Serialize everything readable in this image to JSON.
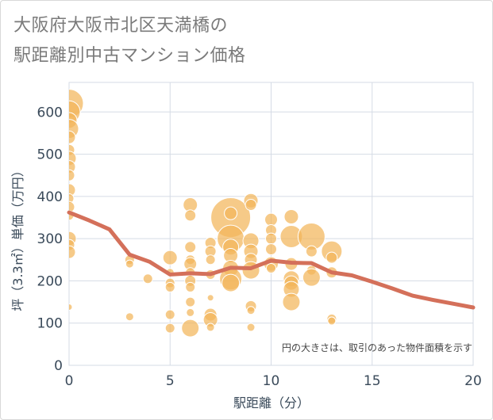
{
  "title_line1": "大阪府大阪市北区天満橋の",
  "title_line2": "駅距離別中古マンション価格",
  "colors": {
    "bubble": "#f2b65a",
    "line": "#d4705a",
    "grid": "#d5dbe5",
    "axis_text": "#3a4a5a"
  },
  "chart_data": {
    "type": "scatter",
    "xlabel": "駅距離（分）",
    "ylabel": "坪（3.3㎡）単価（万円）",
    "xlim": [
      0,
      20
    ],
    "ylim": [
      0,
      670
    ],
    "x_ticks": [
      "0",
      "5",
      "10",
      "15",
      "20"
    ],
    "y_ticks": [
      "0",
      "100",
      "200",
      "300",
      "400",
      "500",
      "600"
    ],
    "note": "円の大きさは、取引のあった物件面積を示す",
    "bubbles": [
      {
        "x": 0,
        "y": 620,
        "r": 18
      },
      {
        "x": 0,
        "y": 600,
        "r": 14
      },
      {
        "x": 0,
        "y": 580,
        "r": 10
      },
      {
        "x": 0,
        "y": 560,
        "r": 12
      },
      {
        "x": 0,
        "y": 540,
        "r": 8
      },
      {
        "x": 0,
        "y": 510,
        "r": 7
      },
      {
        "x": 0,
        "y": 490,
        "r": 9
      },
      {
        "x": 0,
        "y": 470,
        "r": 8
      },
      {
        "x": 0,
        "y": 450,
        "r": 7
      },
      {
        "x": 0,
        "y": 415,
        "r": 8
      },
      {
        "x": 0,
        "y": 395,
        "r": 6
      },
      {
        "x": 0,
        "y": 375,
        "r": 7
      },
      {
        "x": 0,
        "y": 355,
        "r": 6
      },
      {
        "x": 0,
        "y": 300,
        "r": 9
      },
      {
        "x": 0,
        "y": 285,
        "r": 7
      },
      {
        "x": 0,
        "y": 268,
        "r": 8
      },
      {
        "x": 0,
        "y": 138,
        "r": 4
      },
      {
        "x": 3,
        "y": 250,
        "r": 6
      },
      {
        "x": 3,
        "y": 240,
        "r": 5
      },
      {
        "x": 3,
        "y": 115,
        "r": 5
      },
      {
        "x": 3.9,
        "y": 205,
        "r": 6
      },
      {
        "x": 5,
        "y": 255,
        "r": 9
      },
      {
        "x": 5,
        "y": 220,
        "r": 5
      },
      {
        "x": 5,
        "y": 195,
        "r": 6
      },
      {
        "x": 5,
        "y": 185,
        "r": 6
      },
      {
        "x": 5,
        "y": 120,
        "r": 6
      },
      {
        "x": 5,
        "y": 88,
        "r": 6
      },
      {
        "x": 6,
        "y": 380,
        "r": 9
      },
      {
        "x": 6,
        "y": 355,
        "r": 7
      },
      {
        "x": 6,
        "y": 280,
        "r": 7
      },
      {
        "x": 6,
        "y": 250,
        "r": 6
      },
      {
        "x": 6,
        "y": 240,
        "r": 8
      },
      {
        "x": 6,
        "y": 220,
        "r": 6
      },
      {
        "x": 6,
        "y": 200,
        "r": 7
      },
      {
        "x": 6,
        "y": 185,
        "r": 6
      },
      {
        "x": 6,
        "y": 150,
        "r": 6
      },
      {
        "x": 6,
        "y": 125,
        "r": 5
      },
      {
        "x": 6,
        "y": 88,
        "r": 11
      },
      {
        "x": 7,
        "y": 290,
        "r": 7
      },
      {
        "x": 7,
        "y": 270,
        "r": 7
      },
      {
        "x": 7,
        "y": 250,
        "r": 6
      },
      {
        "x": 7,
        "y": 215,
        "r": 6
      },
      {
        "x": 7,
        "y": 160,
        "r": 4
      },
      {
        "x": 7,
        "y": 120,
        "r": 8
      },
      {
        "x": 7,
        "y": 108,
        "r": 9
      },
      {
        "x": 7,
        "y": 90,
        "r": 5
      },
      {
        "x": 8,
        "y": 350,
        "r": 25
      },
      {
        "x": 8,
        "y": 300,
        "r": 17
      },
      {
        "x": 8,
        "y": 360,
        "r": 8
      },
      {
        "x": 8,
        "y": 280,
        "r": 10
      },
      {
        "x": 8,
        "y": 260,
        "r": 9
      },
      {
        "x": 8,
        "y": 230,
        "r": 10
      },
      {
        "x": 8,
        "y": 205,
        "r": 14
      },
      {
        "x": 8,
        "y": 195,
        "r": 11
      },
      {
        "x": 9,
        "y": 390,
        "r": 9
      },
      {
        "x": 9,
        "y": 380,
        "r": 7
      },
      {
        "x": 9,
        "y": 295,
        "r": 10
      },
      {
        "x": 9,
        "y": 270,
        "r": 9
      },
      {
        "x": 9,
        "y": 250,
        "r": 8
      },
      {
        "x": 9,
        "y": 225,
        "r": 11
      },
      {
        "x": 9,
        "y": 140,
        "r": 7
      },
      {
        "x": 9,
        "y": 130,
        "r": 5
      },
      {
        "x": 9,
        "y": 90,
        "r": 5
      },
      {
        "x": 10,
        "y": 345,
        "r": 8
      },
      {
        "x": 10,
        "y": 320,
        "r": 7
      },
      {
        "x": 10,
        "y": 300,
        "r": 7
      },
      {
        "x": 10,
        "y": 275,
        "r": 7
      },
      {
        "x": 10,
        "y": 240,
        "r": 9
      },
      {
        "x": 10,
        "y": 230,
        "r": 6
      },
      {
        "x": 11,
        "y": 352,
        "r": 9
      },
      {
        "x": 11,
        "y": 305,
        "r": 14
      },
      {
        "x": 11,
        "y": 240,
        "r": 8
      },
      {
        "x": 11,
        "y": 205,
        "r": 10
      },
      {
        "x": 11,
        "y": 195,
        "r": 9
      },
      {
        "x": 11,
        "y": 180,
        "r": 10
      },
      {
        "x": 11,
        "y": 150,
        "r": 11
      },
      {
        "x": 12,
        "y": 305,
        "r": 17
      },
      {
        "x": 12,
        "y": 270,
        "r": 7
      },
      {
        "x": 12,
        "y": 225,
        "r": 6
      },
      {
        "x": 12,
        "y": 208,
        "r": 11
      },
      {
        "x": 13,
        "y": 270,
        "r": 13
      },
      {
        "x": 13,
        "y": 255,
        "r": 7
      },
      {
        "x": 13,
        "y": 220,
        "r": 7
      },
      {
        "x": 13,
        "y": 110,
        "r": 6
      },
      {
        "x": 13,
        "y": 105,
        "r": 5
      },
      {
        "x": 6,
        "y": 516,
        "r": 0.7
      }
    ],
    "series": [
      {
        "name": "平均坪単価",
        "x": [
          0,
          1,
          2,
          3,
          4,
          5,
          6,
          7,
          8,
          9,
          10,
          11,
          12,
          13,
          14,
          15,
          16,
          17,
          18,
          19,
          20
        ],
        "values": [
          362,
          343,
          322,
          262,
          245,
          215,
          218,
          216,
          231,
          230,
          248,
          243,
          242,
          220,
          213,
          198,
          182,
          165,
          155,
          146,
          137
        ]
      }
    ]
  }
}
